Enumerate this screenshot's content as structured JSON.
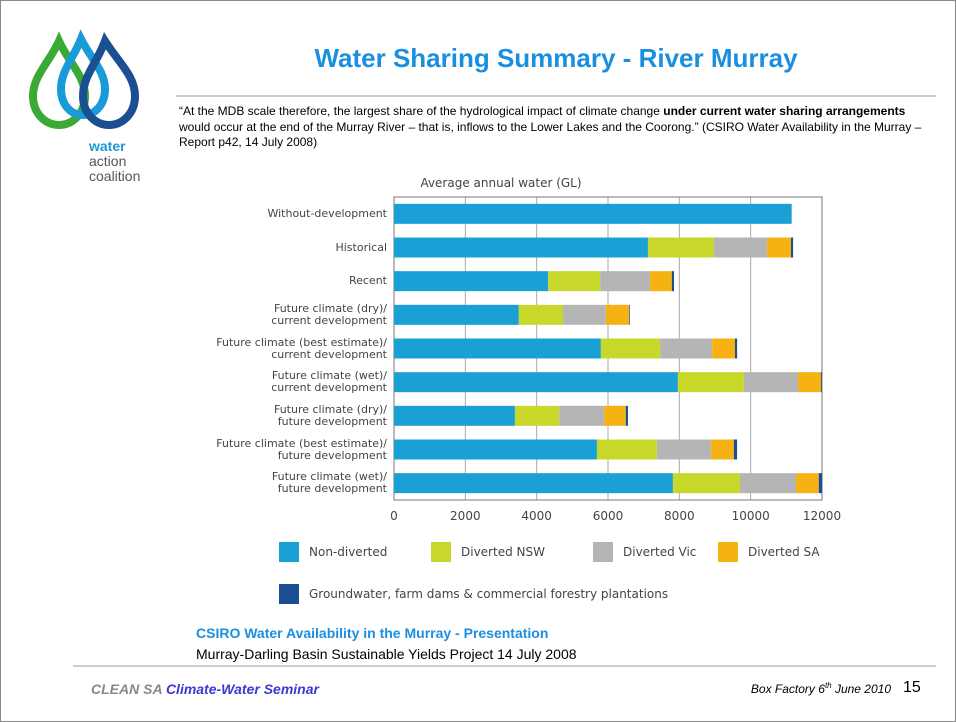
{
  "slide": {
    "title": "Water Sharing Summary - River Murray",
    "quote": [
      "“At the MDB scale therefore, the largest share of the hydrological impact of climate change ",
      "under current water sharing arrangements",
      " would occur at the end of the Murray River – that is, inflows to the Lower Lakes and the Coorong.” (CSIRO Water Availability in the Murray – Report p42, 14 July 2008)"
    ],
    "logo": [
      "water",
      "action",
      "coalition"
    ],
    "source_title": "CSIRO Water Availability in the Murray  - Presentation",
    "source_subtitle": "Murray-Darling Basin Sustainable Yields Project 14 July 2008",
    "footer_left": [
      "CLEAN SA ",
      "Climate-Water Seminar"
    ],
    "footer_right": [
      "Box Factory   6",
      "th",
      " June 2010"
    ],
    "page_number": "15"
  },
  "chart_data": {
    "type": "stacked_barh",
    "title": "Average annual water (GL)",
    "categories": [
      "Without-development",
      "Historical",
      "Recent",
      "Future climate (dry)/\ncurrent development",
      "Future climate (best estimate)/\ncurrent development",
      "Future climate (wet)/\ncurrent development",
      "Future climate (dry)/\nfuture development",
      "Future climate (best estimate)/\nfuture development",
      "Future climate (wet)/\nfuture development"
    ],
    "series": [
      {
        "name": "Non-diverted",
        "color": "#1aa0d4",
        "values": [
          11150,
          7120,
          4320,
          3500,
          5800,
          7960,
          3390,
          5690,
          7820
        ]
      },
      {
        "name": "Diverted NSW",
        "color": "#c8d82a",
        "values": [
          0,
          1850,
          1460,
          1240,
          1660,
          1850,
          1240,
          1680,
          1880
        ]
      },
      {
        "name": "Diverted Vic",
        "color": "#b5b5b5",
        "values": [
          0,
          1490,
          1400,
          1200,
          1460,
          1520,
          1260,
          1520,
          1570
        ]
      },
      {
        "name": "Diverted SA",
        "color": "#f5b212",
        "values": [
          0,
          670,
          610,
          650,
          640,
          640,
          610,
          640,
          640
        ]
      },
      {
        "name": "Groundwater, farm dams & commercial forestry plantations",
        "color": "#1a4f91",
        "values": [
          0,
          60,
          60,
          20,
          60,
          20,
          60,
          90,
          90
        ]
      }
    ],
    "xlim": [
      0,
      12000
    ],
    "xticks": [
      0,
      2000,
      4000,
      6000,
      8000,
      10000,
      12000
    ],
    "grid": true
  }
}
